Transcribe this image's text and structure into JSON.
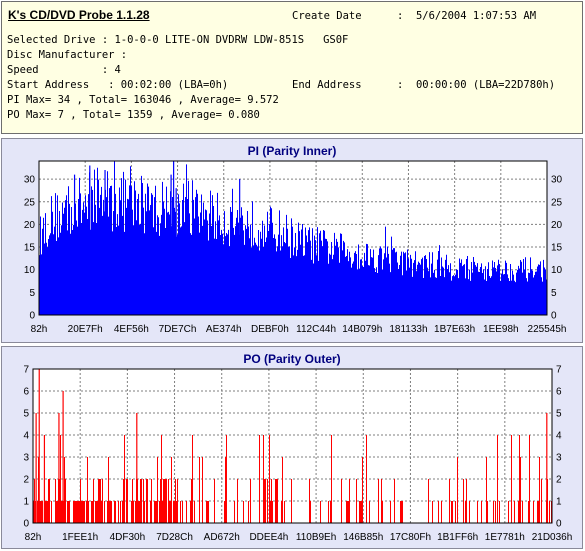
{
  "app": {
    "title": "K's CD/DVD Probe 1.1.28"
  },
  "info": {
    "create_date_label": "Create Date",
    "create_date_value": ":  5/6/2004 1:07:53 AM",
    "selected_drive": "Selected Drive : 1-0-0-0 LITE-ON DVDRW LDW-851S   GS0F",
    "disc_manufacturer": "Disc Manufacturer :",
    "speed": "Speed          : 4",
    "start_address": "Start Address   : 00:02:00 (LBA=0h)",
    "end_address_label": "End Address",
    "end_address_value": ":  00:00:00 (LBA=22D780h)",
    "pi_summary": "PI Max= 34 , Total= 163046 , Average= 9.572",
    "po_summary": "PO Max= 7 , Total= 1359 , Average= 0.080"
  },
  "chart_data": [
    {
      "type": "bar",
      "title": "PI (Parity Inner)",
      "ylim": [
        0,
        34
      ],
      "yticks": [
        "0",
        "5",
        "10",
        "15",
        "20",
        "25",
        "30"
      ],
      "xticks": [
        "82h",
        "20E7Fh",
        "4EF56h",
        "7DE7Ch",
        "AE374h",
        "DEBF0h",
        "112C44h",
        "14B079h",
        "181133h",
        "1B7E63h",
        "1EE98h",
        "225545h"
      ],
      "color": "#0000ff",
      "grid": true,
      "profile": [
        {
          "x": 0.0,
          "y": 17
        },
        {
          "x": 0.02,
          "y": 21
        },
        {
          "x": 0.06,
          "y": 23
        },
        {
          "x": 0.12,
          "y": 26
        },
        {
          "x": 0.2,
          "y": 24
        },
        {
          "x": 0.28,
          "y": 23
        },
        {
          "x": 0.36,
          "y": 21
        },
        {
          "x": 0.42,
          "y": 20
        },
        {
          "x": 0.47,
          "y": 18.5
        },
        {
          "x": 0.52,
          "y": 16
        },
        {
          "x": 0.6,
          "y": 14
        },
        {
          "x": 0.7,
          "y": 12
        },
        {
          "x": 0.8,
          "y": 10.5
        },
        {
          "x": 0.9,
          "y": 10
        },
        {
          "x": 1.0,
          "y": 10
        }
      ],
      "peaks": [
        {
          "x": 0.07,
          "y": 31
        },
        {
          "x": 0.1,
          "y": 33
        },
        {
          "x": 0.13,
          "y": 32
        },
        {
          "x": 0.26,
          "y": 31
        },
        {
          "x": 0.265,
          "y": 34
        },
        {
          "x": 0.395,
          "y": 30
        },
        {
          "x": 0.27,
          "y": 28
        }
      ]
    },
    {
      "type": "bar",
      "title": "PO (Parity Outer)",
      "ylim": [
        0,
        7
      ],
      "yticks": [
        "0",
        "1",
        "2",
        "3",
        "4",
        "5",
        "6",
        "7"
      ],
      "xticks": [
        "82h",
        "1FEE1h",
        "4DF30h",
        "7D28Ch",
        "AD672h",
        "DDEE4h",
        "110B9Eh",
        "146B85h",
        "17C80Fh",
        "1B1FF6h",
        "1E7781h",
        "21D036h"
      ],
      "color": "#ff0000",
      "grid": true,
      "density_regions": [
        {
          "from": 0.0,
          "to": 0.28,
          "density": 0.7
        },
        {
          "from": 0.28,
          "to": 0.5,
          "density": 0.35
        },
        {
          "from": 0.5,
          "to": 0.78,
          "density": 0.2
        },
        {
          "from": 0.78,
          "to": 1.0,
          "density": 0.3
        }
      ],
      "peaks": [
        {
          "x": 0.012,
          "y": 7
        },
        {
          "x": 0.006,
          "y": 5
        },
        {
          "x": 0.022,
          "y": 4
        },
        {
          "x": 0.05,
          "y": 5
        },
        {
          "x": 0.058,
          "y": 6
        },
        {
          "x": 0.2,
          "y": 5
        },
        {
          "x": 0.99,
          "y": 5
        }
      ]
    }
  ]
}
